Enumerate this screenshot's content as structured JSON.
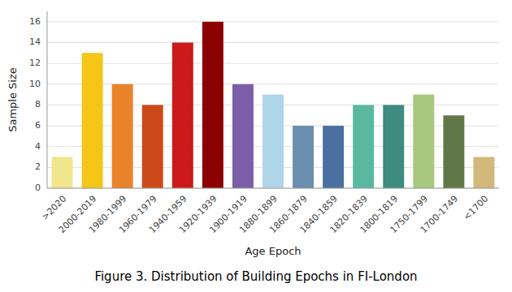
{
  "chart_data": {
    "type": "bar",
    "title": "Figure 3. Distribution of Building Epochs in FI-London",
    "xlabel": "Age Epoch",
    "ylabel": "Sample Size",
    "categories": [
      ">2020",
      "2000-2019",
      "1980-1999",
      "1960-1979",
      "1940-1959",
      "1920-1939",
      "1900-1919",
      "1880-1899",
      "1860-1879",
      "1840-1859",
      "1820-1839",
      "1800-1819",
      "1750-1799",
      "1700-1749",
      "<1700"
    ],
    "values": [
      3,
      13,
      10,
      8,
      14,
      16,
      10,
      9,
      6,
      6,
      8,
      8,
      9,
      7,
      3
    ],
    "colors": [
      "#F0E68C",
      "#F5C518",
      "#E8832A",
      "#CC4A1A",
      "#CC1A1A",
      "#8B0000",
      "#7B5EA7",
      "#B0D4E8",
      "#6A8EAE",
      "#4A6FA0",
      "#5BB8A0",
      "#3E8B80",
      "#A8C880",
      "#607848",
      "#D2B87A"
    ],
    "ylim": [
      0,
      17
    ],
    "yticks": [
      0,
      2,
      4,
      6,
      8,
      10,
      12,
      14,
      16
    ],
    "grid": true
  }
}
